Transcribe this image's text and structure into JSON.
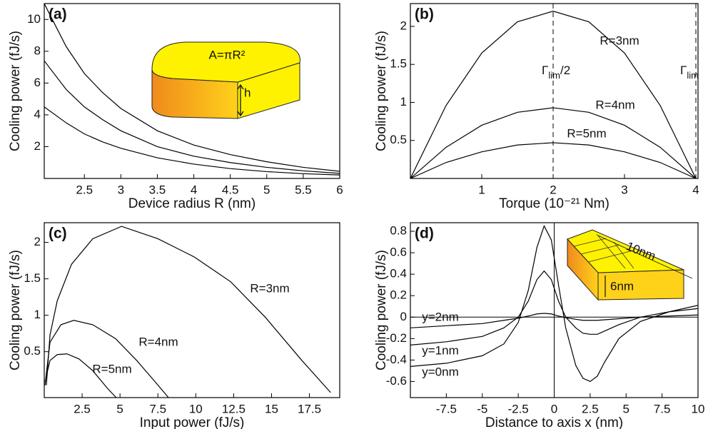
{
  "chart_data": [
    {
      "type": "line",
      "title": "(a)",
      "x_label": "Device radius R (nm)",
      "y_label": "Cooling power (fJ/s)",
      "x": [
        1.95,
        2.25,
        2.5,
        2.75,
        3,
        3.5,
        4,
        4.5,
        5,
        5.5,
        6
      ],
      "series": [
        {
          "color": "#000000",
          "values": [
            11.0,
            8.3,
            6.6,
            5.4,
            4.4,
            3.0,
            2.1,
            1.5,
            1.05,
            0.7,
            0.45
          ]
        },
        {
          "color": "#000000",
          "values": [
            7.4,
            5.6,
            4.5,
            3.7,
            3.0,
            2.0,
            1.4,
            1.0,
            0.7,
            0.48,
            0.32
          ]
        },
        {
          "color": "#000000",
          "values": [
            4.5,
            3.5,
            2.8,
            2.3,
            1.9,
            1.3,
            0.9,
            0.62,
            0.43,
            0.3,
            0.22
          ]
        }
      ],
      "xlim": [
        1.95,
        6
      ],
      "ylim": [
        0,
        11
      ],
      "xticks": [
        2.5,
        3,
        3.5,
        4,
        4.5,
        5,
        5.5,
        6
      ],
      "yticks": [
        2,
        4,
        6,
        8,
        10
      ],
      "inset_labels": [
        "A=πR²",
        "h"
      ]
    },
    {
      "type": "line",
      "title": "(b)",
      "x_label": "Torque (10⁻²¹ Nm)",
      "y_label": "Cooling power (fJ/s)",
      "x": [
        0,
        0.5,
        1,
        1.5,
        2,
        2.5,
        3,
        3.5,
        4
      ],
      "series": [
        {
          "name": "R=3nm",
          "color": "#000000",
          "values": [
            0,
            0.96,
            1.65,
            2.06,
            2.2,
            2.06,
            1.65,
            0.96,
            0
          ]
        },
        {
          "name": "R=4nm",
          "color": "#000000",
          "values": [
            0,
            0.41,
            0.7,
            0.87,
            0.93,
            0.87,
            0.7,
            0.41,
            0
          ]
        },
        {
          "name": "R=5nm",
          "color": "#000000",
          "values": [
            0,
            0.21,
            0.35,
            0.44,
            0.47,
            0.44,
            0.35,
            0.21,
            0
          ]
        }
      ],
      "xlim": [
        0,
        4.03
      ],
      "ylim": [
        0,
        2.3
      ],
      "xticks": [
        1,
        2,
        3,
        4
      ],
      "yticks": [
        0.5,
        1,
        1.5,
        2
      ],
      "vlines": [
        {
          "x": 2,
          "label": [
            "Γ",
            "lim",
            "/2"
          ]
        },
        {
          "x": 4,
          "label": [
            "Γ",
            "lim"
          ]
        }
      ]
    },
    {
      "type": "line",
      "title": "(c)",
      "x_label": "Input power (fJ/s)",
      "y_label": "Cooling power (fJ/s)",
      "series": [
        {
          "name": "R=3nm",
          "color": "#000000",
          "x": [
            0.14,
            0.38,
            0.86,
            1.8,
            3.2,
            5.1,
            7.5,
            9.9,
            12.3,
            14.6,
            17.0,
            18.9
          ],
          "values": [
            0.04,
            0.73,
            1.2,
            1.7,
            2.05,
            2.22,
            2.05,
            1.8,
            1.46,
            0.97,
            0.38,
            -0.06
          ]
        },
        {
          "name": "R=4nm",
          "color": "#000000",
          "x": [
            0.05,
            0.38,
            1.1,
            1.95,
            3.2,
            4.7,
            6.1,
            7.3,
            8.2
          ],
          "values": [
            0.04,
            0.63,
            0.87,
            0.93,
            0.87,
            0.68,
            0.38,
            0.09,
            -0.13
          ]
        },
        {
          "name": "R=5nm",
          "color": "#000000",
          "x": [
            0.05,
            0.38,
            0.86,
            1.5,
            2.3,
            3.2,
            4.2,
            4.75
          ],
          "values": [
            0.09,
            0.38,
            0.46,
            0.47,
            0.4,
            0.24,
            -0.01,
            -0.13
          ]
        }
      ],
      "xlim": [
        0,
        19.5
      ],
      "ylim": [
        -0.13,
        2.27
      ],
      "xticks": [
        2.5,
        5,
        7.5,
        10,
        12.5,
        15,
        17.5
      ],
      "yticks": [
        0.5,
        1,
        1.5,
        2
      ]
    },
    {
      "type": "line",
      "title": "(d)",
      "x_label": "Distance to axis x (nm)",
      "y_label": "Cooling power (fJ/s)",
      "x": [
        -10,
        -7.5,
        -5,
        -3.5,
        -2.5,
        -1.8,
        -1.2,
        -0.7,
        -0.2,
        0.3,
        0.8,
        1.5,
        2,
        2.5,
        3,
        3.5,
        4.5,
        6,
        8,
        10
      ],
      "series": [
        {
          "name": "y=0nm",
          "color": "#000000",
          "values": [
            -0.46,
            -0.43,
            -0.36,
            -0.25,
            -0.05,
            0.25,
            0.65,
            0.85,
            0.72,
            0.3,
            -0.1,
            -0.45,
            -0.57,
            -0.6,
            -0.55,
            -0.42,
            -0.2,
            -0.04,
            0.05,
            0.11
          ]
        },
        {
          "name": "y=1nm",
          "color": "#000000",
          "values": [
            -0.26,
            -0.23,
            -0.18,
            -0.1,
            0.0,
            0.15,
            0.35,
            0.43,
            0.35,
            0.15,
            0.0,
            -0.1,
            -0.15,
            -0.16,
            -0.16,
            -0.13,
            -0.07,
            0.0,
            0.05,
            0.08
          ]
        },
        {
          "name": "y=2nm",
          "color": "#000000",
          "values": [
            -0.1,
            -0.08,
            -0.06,
            -0.03,
            -0.01,
            0.01,
            0.03,
            0.035,
            0.03,
            0.01,
            -0.005,
            -0.02,
            -0.03,
            -0.03,
            -0.03,
            -0.025,
            -0.015,
            0.0,
            0.01,
            0.02
          ]
        }
      ],
      "xlim": [
        -10,
        10
      ],
      "ylim": [
        -0.75,
        0.88
      ],
      "xticks": [
        -7.5,
        -5,
        -2.5,
        0,
        2.5,
        5,
        7.5,
        10
      ],
      "yticks": [
        -0.6,
        -0.4,
        -0.2,
        0,
        0.2,
        0.4,
        0.6,
        0.8
      ],
      "origin_lines": true,
      "inset_labels": [
        "10nm",
        "6nm"
      ]
    }
  ]
}
